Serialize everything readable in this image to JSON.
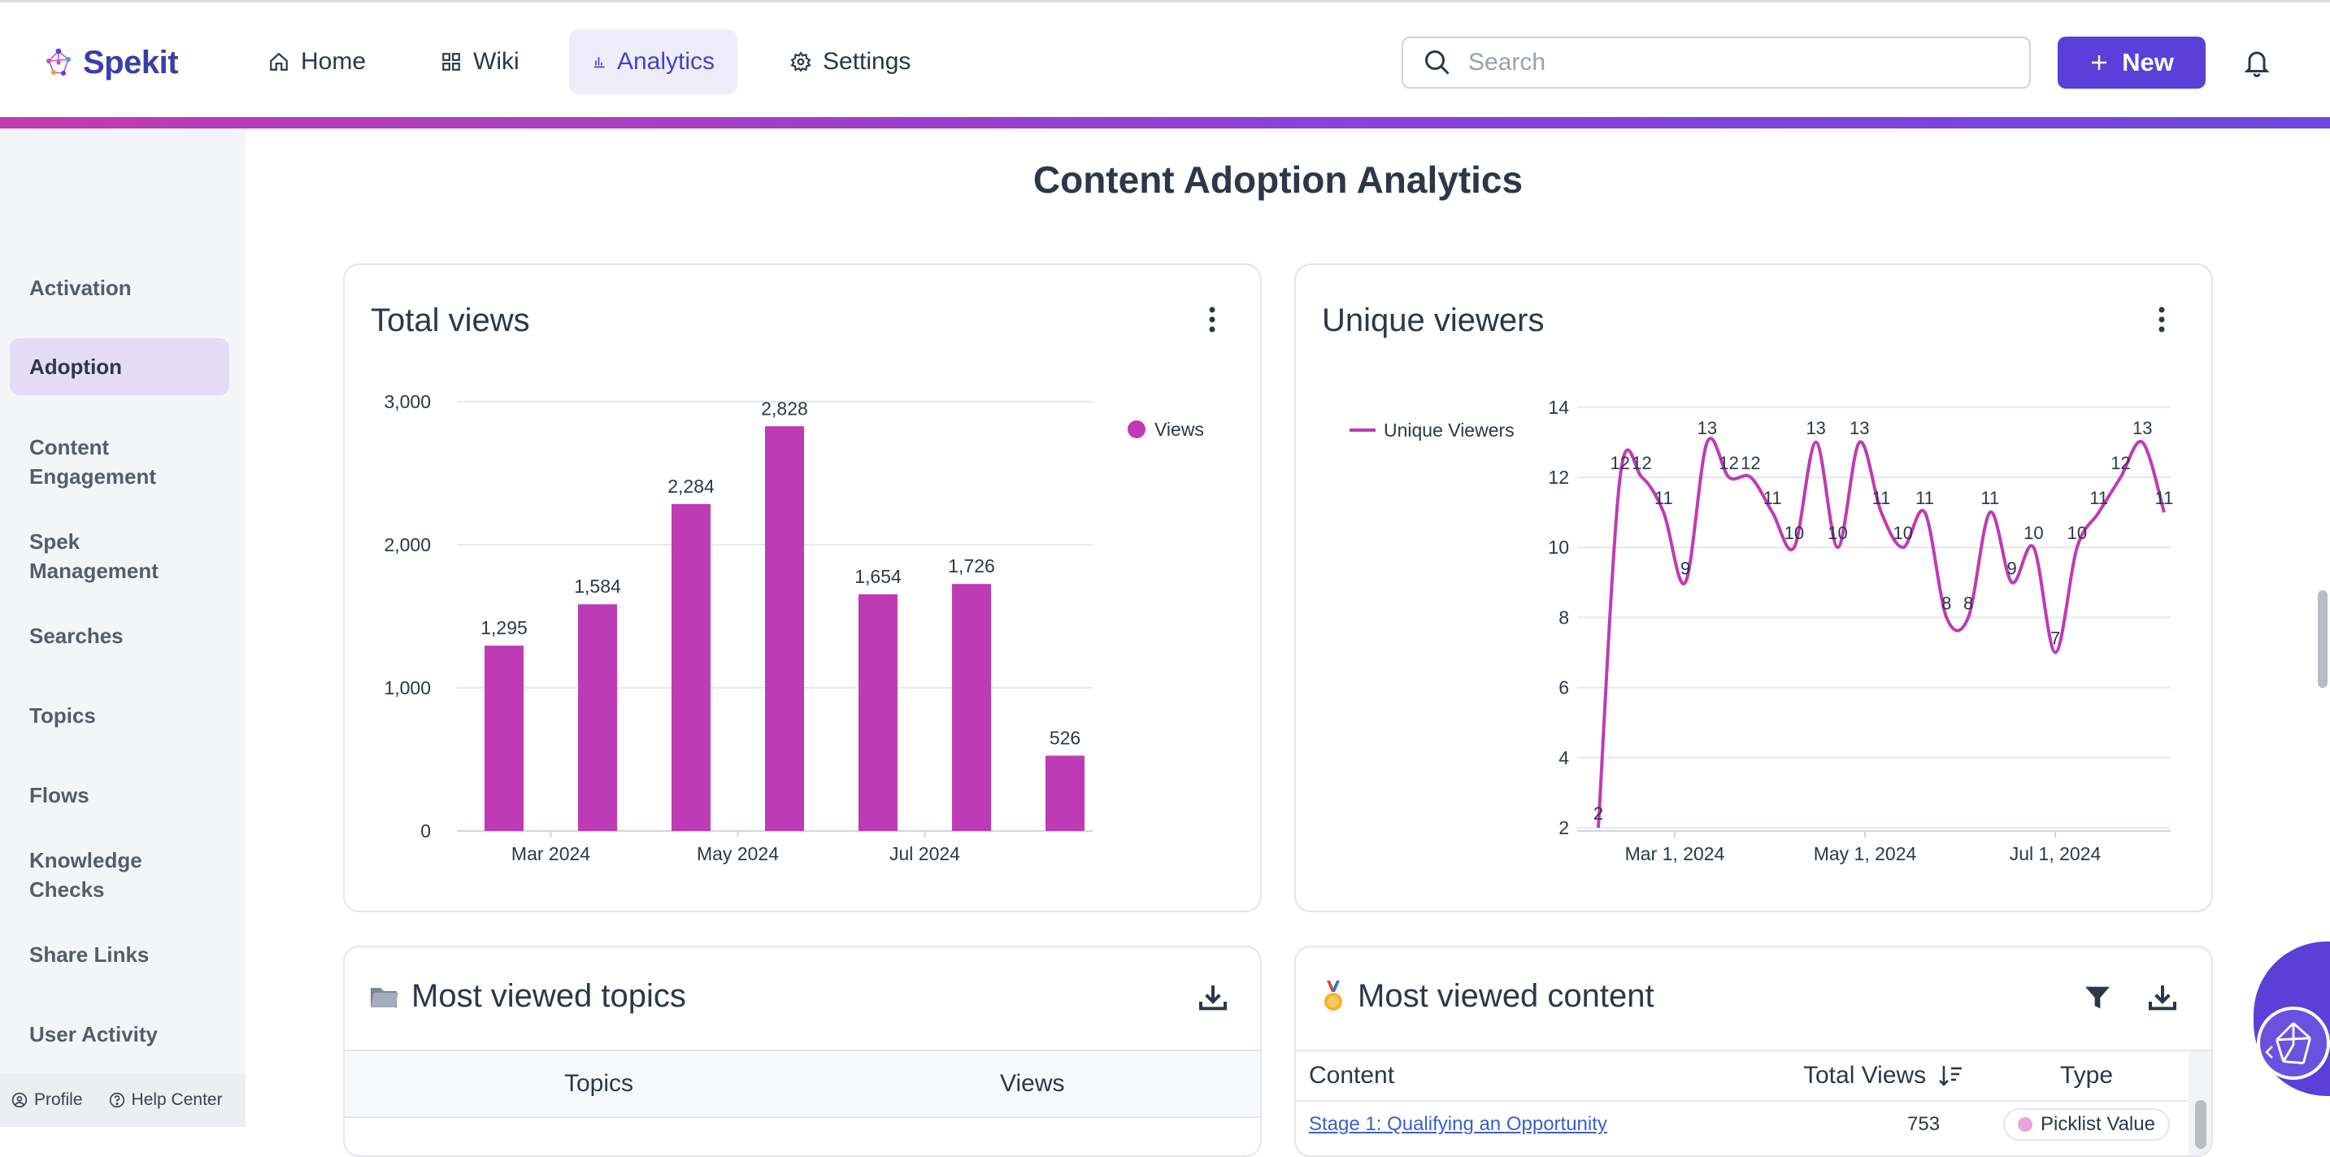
{
  "brand": {
    "name": "Spekit"
  },
  "nav": {
    "items": [
      {
        "label": "Home",
        "icon": "home-icon"
      },
      {
        "label": "Wiki",
        "icon": "grid-icon"
      },
      {
        "label": "Analytics",
        "icon": "bar-chart-icon"
      },
      {
        "label": "Settings",
        "icon": "gear-icon"
      }
    ],
    "active": "Analytics"
  },
  "search": {
    "placeholder": "Search"
  },
  "new_button": {
    "label": "New"
  },
  "sidebar": {
    "items": [
      {
        "label": "Activation"
      },
      {
        "label": "Adoption"
      },
      {
        "label": "Content Engagement"
      },
      {
        "label": "Spek Management"
      },
      {
        "label": "Searches"
      },
      {
        "label": "Topics"
      },
      {
        "label": "Flows"
      },
      {
        "label": "Knowledge Checks"
      },
      {
        "label": "Share Links"
      },
      {
        "label": "User Activity"
      }
    ],
    "active": "Adoption",
    "footer": {
      "profile": "Profile",
      "help": "Help Center"
    }
  },
  "page": {
    "title": "Content Adoption Analytics"
  },
  "cards": {
    "total_views": {
      "title": "Total views"
    },
    "unique_viewers": {
      "title": "Unique viewers"
    },
    "most_viewed_topics": {
      "title": "Most viewed topics",
      "columns": [
        "Topics",
        "Views"
      ]
    },
    "most_viewed_content": {
      "title": "Most viewed content",
      "columns": [
        "Content",
        "Total Views",
        "Type"
      ],
      "rows": [
        {
          "content": "Stage 1: Qualifying an Opportunity",
          "views": "753",
          "type": "Picklist Value"
        }
      ]
    }
  },
  "colors": {
    "accent": "#5a3fd9",
    "series": "#bf3ab5",
    "brand": "#3b3ea8"
  },
  "chart_data": [
    {
      "type": "bar",
      "title": "Total views",
      "legend": [
        "Views"
      ],
      "legend_position": "top-right",
      "values": [
        1295,
        1584,
        2284,
        2828,
        1654,
        1726,
        526
      ],
      "value_labels": [
        "1,295",
        "1,584",
        "2,284",
        "2,828",
        "1,654",
        "1,726",
        "526"
      ],
      "x_tick_labels": [
        "Mar 2024",
        "May 2024",
        "Jul 2024"
      ],
      "y_ticks": [
        0,
        1000,
        2000,
        3000
      ],
      "y_tick_labels": [
        "0",
        "1,000",
        "2,000",
        "3,000"
      ],
      "ylim": [
        0,
        3000
      ],
      "grid": true
    },
    {
      "type": "line",
      "title": "Unique viewers",
      "legend": [
        "Unique Viewers"
      ],
      "legend_position": "top-left",
      "values": [
        2,
        12,
        12,
        11,
        9,
        13,
        12,
        12,
        11,
        10,
        13,
        10,
        13,
        11,
        10,
        11,
        8,
        8,
        11,
        9,
        10,
        7,
        10,
        11,
        12,
        13,
        11
      ],
      "x_tick_labels": [
        "Mar 1, 2024",
        "May 1, 2024",
        "Jul 1, 2024"
      ],
      "y_ticks": [
        2,
        4,
        6,
        8,
        10,
        12,
        14
      ],
      "ylim": [
        1.5,
        14
      ],
      "grid": true
    }
  ]
}
